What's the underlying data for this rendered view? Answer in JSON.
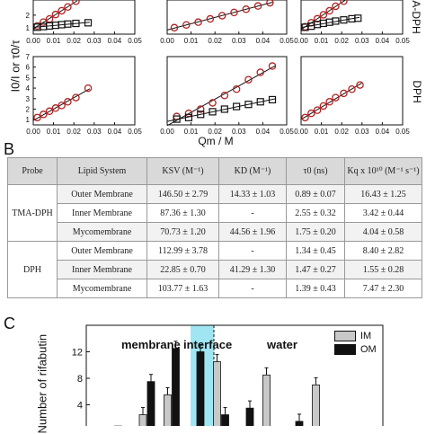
{
  "panel_a": {
    "y_axis_label": "I0/I or τ0/τ",
    "x_axis_label": "Qm / M",
    "row_labels": [
      "A-DPH",
      "DPH"
    ],
    "x_ticks": [
      "0.00",
      "0.01",
      "0.02",
      "0.03",
      "0.04",
      "0.05"
    ],
    "y_ticks_top": [
      "2",
      "1"
    ],
    "y_ticks_bottom": [
      "7",
      "6",
      "5",
      "4",
      "3",
      "2",
      "1"
    ]
  },
  "panel_b": {
    "letter": "B",
    "headers": [
      "Probe",
      "Lipid System",
      "KSV (M⁻¹)",
      "KD (M⁻¹)",
      "τ0 (ns)",
      "Kq x 10¹⁰ (M⁻¹ s⁻¹)"
    ],
    "groups": [
      {
        "probe": "TMA-DPH",
        "rows": [
          [
            "Outer Membrane",
            "146.50 ± 2.79",
            "14.33 ± 1.03",
            "0.89 ± 0.07",
            "16.43 ± 1.25"
          ],
          [
            "Inner Membrane",
            "87.36 ± 1.30",
            "-",
            "2.55 ± 0.32",
            "3.42 ± 0.44"
          ],
          [
            "Mycomembrane",
            "70.73 ± 1.20",
            "44.56 ± 1.96",
            "1.75 ± 0.20",
            "4.04 ± 0.58"
          ]
        ]
      },
      {
        "probe": "DPH",
        "rows": [
          [
            "Outer Membrane",
            "112.99 ± 3.78",
            "-",
            "1.34 ± 0.45",
            "8.40 ± 2.82"
          ],
          [
            "Inner Membrane",
            "22.85 ± 0.70",
            "41.29 ± 1.30",
            "1.47 ± 0.27",
            "1.55 ± 0.28"
          ],
          [
            "Mycomembrane",
            "103.77 ± 1.63",
            "-",
            "1.39 ± 0.43",
            "7.47 ± 2.30"
          ]
        ]
      }
    ]
  },
  "panel_c": {
    "letter": "C",
    "y_label": "Number of rifabutin",
    "regions": [
      "membrane",
      "interface",
      "water"
    ],
    "legend": [
      {
        "name": "IM",
        "color": "#c8c8c8"
      },
      {
        "name": "OM",
        "color": "#111111"
      }
    ],
    "y_ticks": [
      "12",
      "8",
      "4"
    ]
  },
  "colors": {
    "circle_series": "#b22222",
    "square_series": "#111111",
    "fit_line": "#111111",
    "interface_band": "#9fe6f2"
  },
  "chart_data": [
    {
      "type": "scatter",
      "panel": "top-left",
      "xlim": [
        0,
        0.05
      ],
      "series": [
        {
          "marker": "circle",
          "x": [
            0.002,
            0.005,
            0.008,
            0.011,
            0.014,
            0.017,
            0.021
          ],
          "y": [
            1.15,
            1.45,
            1.7,
            2.05,
            2.35,
            2.65,
            3.1
          ]
        },
        {
          "marker": "square",
          "x": [
            0.002,
            0.005,
            0.008,
            0.011,
            0.014,
            0.017,
            0.021,
            0.027
          ],
          "y": [
            1.05,
            1.1,
            1.15,
            1.2,
            1.25,
            1.3,
            1.35,
            1.4
          ]
        }
      ]
    },
    {
      "type": "scatter",
      "panel": "top-middle",
      "xlim": [
        0,
        0.05
      ],
      "series": [
        {
          "marker": "circle",
          "x": [
            0.003,
            0.008,
            0.013,
            0.018,
            0.023,
            0.028,
            0.033,
            0.038,
            0.043
          ],
          "y": [
            1.2,
            1.5,
            1.8,
            2.15,
            2.5,
            2.85,
            3.2,
            3.55,
            3.9
          ]
        }
      ]
    },
    {
      "type": "scatter",
      "panel": "top-right",
      "xlim": [
        0,
        0.05
      ],
      "series": [
        {
          "marker": "circle",
          "x": [
            0.002,
            0.005,
            0.008,
            0.011,
            0.014,
            0.017,
            0.021
          ],
          "y": [
            1.15,
            1.5,
            1.85,
            2.2,
            2.55,
            2.95,
            3.4
          ]
        },
        {
          "marker": "square",
          "x": [
            0.002,
            0.005,
            0.008,
            0.011,
            0.014,
            0.017,
            0.021,
            0.025,
            0.028
          ],
          "y": [
            1.1,
            1.2,
            1.35,
            1.45,
            1.55,
            1.65,
            1.75,
            1.85,
            1.9
          ]
        }
      ]
    },
    {
      "type": "scatter",
      "panel": "bottom-left",
      "xlim": [
        0,
        0.05
      ],
      "ylim": [
        0.5,
        7
      ],
      "series": [
        {
          "marker": "circle",
          "x": [
            0.002,
            0.005,
            0.008,
            0.011,
            0.014,
            0.017,
            0.021,
            0.027
          ],
          "y": [
            1.2,
            1.5,
            1.8,
            2.1,
            2.35,
            2.7,
            3.1,
            4.0
          ]
        }
      ]
    },
    {
      "type": "scatter",
      "panel": "bottom-middle",
      "xlim": [
        0,
        0.05
      ],
      "ylim": [
        0.5,
        7
      ],
      "series": [
        {
          "marker": "circle",
          "x": [
            0.004,
            0.009,
            0.014,
            0.019,
            0.024,
            0.029,
            0.034,
            0.039,
            0.044
          ],
          "y": [
            1.3,
            1.6,
            2.0,
            2.6,
            3.3,
            3.9,
            4.8,
            5.5,
            6.1
          ]
        },
        {
          "marker": "square",
          "x": [
            0.004,
            0.009,
            0.014,
            0.019,
            0.024,
            0.029,
            0.034,
            0.039,
            0.044
          ],
          "y": [
            1.05,
            1.2,
            1.5,
            1.75,
            2.0,
            2.25,
            2.45,
            2.7,
            2.9
          ]
        }
      ]
    },
    {
      "type": "scatter",
      "panel": "bottom-right",
      "xlim": [
        0,
        0.05
      ],
      "ylim": [
        0.5,
        7
      ],
      "series": [
        {
          "marker": "circle",
          "x": [
            0.002,
            0.005,
            0.008,
            0.011,
            0.014,
            0.017,
            0.021,
            0.025,
            0.029
          ],
          "y": [
            1.2,
            1.6,
            1.9,
            2.3,
            2.7,
            3.1,
            3.5,
            3.9,
            4.3
          ]
        }
      ]
    },
    {
      "type": "bar",
      "panel": "C",
      "ylim": [
        0,
        16
      ],
      "series": [
        {
          "name": "IM",
          "values": [
            0.3,
            0.8,
            2.5,
            5.5,
            0.5,
            10.5,
            0,
            8.5,
            0,
            7,
            0,
            0.5
          ]
        },
        {
          "name": "OM",
          "values": [
            0.2,
            0.6,
            7.5,
            12.5,
            12,
            2.5,
            3.5,
            0.7,
            1.5,
            0,
            0,
            0
          ]
        }
      ]
    }
  ]
}
